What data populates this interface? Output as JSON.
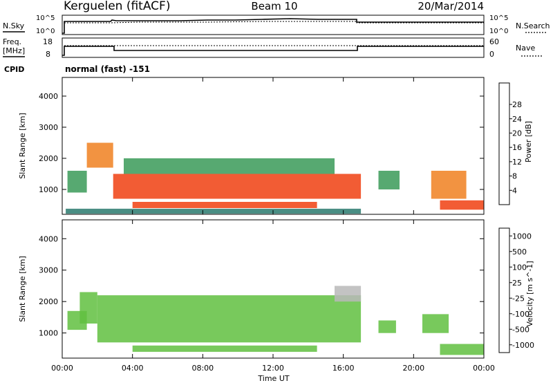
{
  "header": {
    "station": "Kerguelen (fitACF)",
    "beam": "Beam 10",
    "date": "20/Mar/2014"
  },
  "noise_panel": {
    "left_label": "N.Sky",
    "right_label": "N.Search",
    "left_ticks": [
      "10^5",
      "10^0"
    ],
    "right_ticks": [
      "10^5",
      "10^0"
    ]
  },
  "freq_panel": {
    "left_label_1": "Freq.",
    "left_label_2": "[MHz]",
    "right_label": "Nave",
    "left_ticks": [
      "18",
      "8"
    ],
    "right_ticks": [
      "60",
      "0"
    ]
  },
  "cpid": {
    "label": "CPID",
    "value": "normal (fast) -151"
  },
  "x_axis": {
    "label": "Time UT",
    "ticks": [
      "00:00",
      "04:00",
      "08:00",
      "12:00",
      "16:00",
      "20:00",
      "00:00"
    ]
  },
  "colors": {
    "power": [
      "#1020e0",
      "#1a3f9a",
      "#2a7a6e",
      "#3a9a58",
      "#58c038",
      "#f0c020",
      "#f08020",
      "#f04010",
      "#e01010"
    ],
    "velocity": [
      "#1040c0",
      "#2a6a8a",
      "#3a9a5a",
      "#60c040",
      "#b8b8b8",
      "#f0a030",
      "#f06020",
      "#e02010"
    ]
  },
  "chart_data": [
    {
      "type": "heatmap",
      "panel": "power",
      "ylabel": "Slant Range [km]",
      "yticks": [
        "1000",
        "2000",
        "3000",
        "4000"
      ],
      "ylim": [
        200,
        4600
      ],
      "xlim_hours": [
        0,
        24
      ],
      "colorbar_label": "Power [dB]",
      "colorbar_ticks": [
        "4",
        "8",
        "12",
        "16",
        "20",
        "24",
        "28"
      ],
      "colorbar_range": [
        0,
        30
      ],
      "regions": [
        {
          "t0": 0.3,
          "t1": 1.4,
          "r0": 900,
          "r1": 1600,
          "v": 11
        },
        {
          "t0": 1.4,
          "t1": 2.9,
          "r0": 1700,
          "r1": 2500,
          "v": 20
        },
        {
          "t0": 2.9,
          "t1": 17.0,
          "r0": 700,
          "r1": 1500,
          "v": 26
        },
        {
          "t0": 3.5,
          "t1": 15.5,
          "r0": 1500,
          "r1": 2000,
          "v": 13
        },
        {
          "t0": 4.0,
          "t1": 14.5,
          "r0": 400,
          "r1": 600,
          "v": 24
        },
        {
          "t0": 0.2,
          "t1": 17.0,
          "r0": 220,
          "r1": 380,
          "v": 7
        },
        {
          "t0": 18.0,
          "t1": 19.2,
          "r0": 1000,
          "r1": 1600,
          "v": 10
        },
        {
          "t0": 21.0,
          "t1": 23.0,
          "r0": 700,
          "r1": 1600,
          "v": 22
        },
        {
          "t0": 21.5,
          "t1": 24.0,
          "r0": 350,
          "r1": 650,
          "v": 24
        }
      ]
    },
    {
      "type": "heatmap",
      "panel": "velocity",
      "ylabel": "Slant Range [km]",
      "yticks": [
        "1000",
        "2000",
        "3000",
        "4000"
      ],
      "ylim": [
        200,
        4600
      ],
      "xlim_hours": [
        0,
        24
      ],
      "colorbar_label": "Velocity [m s^-1]",
      "colorbar_ticks": [
        "1000",
        "500",
        "100",
        "25",
        "-25",
        "-100",
        "-500",
        "-1000"
      ],
      "colorbar_range": [
        -1200,
        1200
      ],
      "regions": [
        {
          "t0": 0.3,
          "t1": 1.4,
          "r0": 1100,
          "r1": 1700,
          "v": -10
        },
        {
          "t0": 1.0,
          "t1": 2.0,
          "r0": 1300,
          "r1": 2300,
          "v": -200
        },
        {
          "t0": 2.0,
          "t1": 17.0,
          "r0": 700,
          "r1": 2200,
          "v": 0
        },
        {
          "t0": 4.0,
          "t1": 14.5,
          "r0": 400,
          "r1": 600,
          "v": 0
        },
        {
          "t0": 15.5,
          "t1": 17.0,
          "r0": 2000,
          "r1": 2500,
          "v": 120
        },
        {
          "t0": 18.0,
          "t1": 19.0,
          "r0": 1000,
          "r1": 1400,
          "v": 0
        },
        {
          "t0": 20.5,
          "t1": 22.0,
          "r0": 1000,
          "r1": 1600,
          "v": -50
        },
        {
          "t0": 21.5,
          "t1": 24.0,
          "r0": 300,
          "r1": 650,
          "v": 0
        }
      ]
    }
  ]
}
